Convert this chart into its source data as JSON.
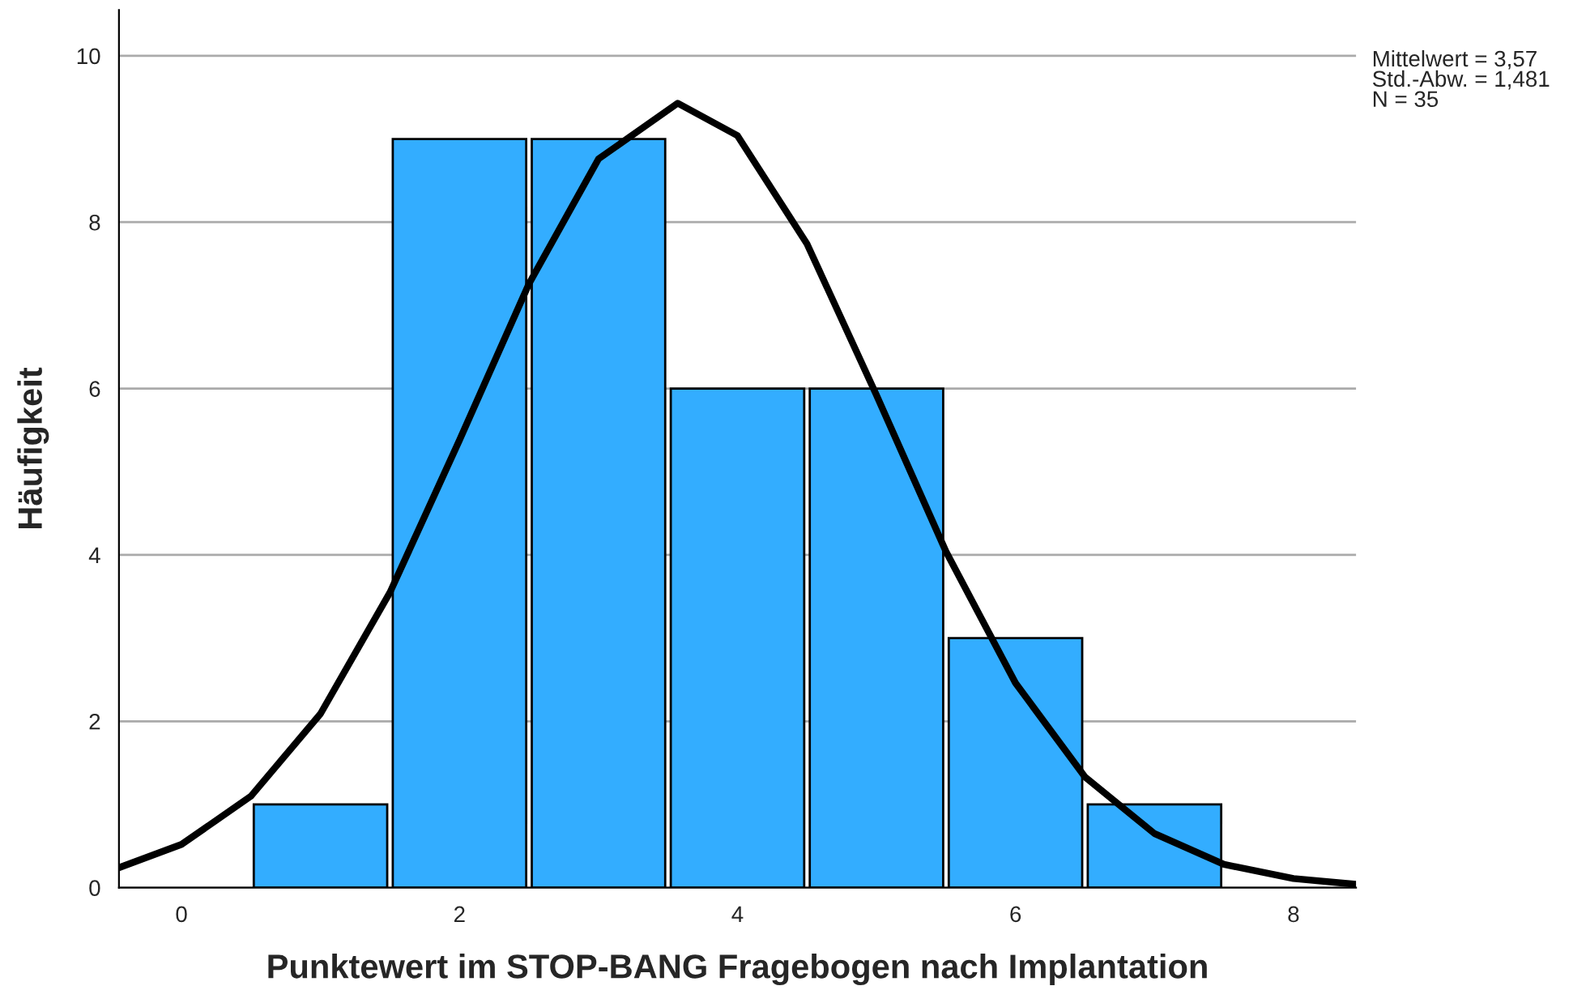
{
  "chart_data": {
    "type": "histogram",
    "xlabel": "Punktewert im STOP-BANG Fragebogen nach Implantation",
    "ylabel": "Häufigkeit",
    "bins": [
      0.5,
      1.5,
      2.5,
      3.5,
      4.5,
      5.5,
      6.5,
      7.5
    ],
    "values": [
      1,
      9,
      9,
      6,
      6,
      3,
      1
    ],
    "color": "#33adff",
    "series": [
      {
        "type": "line",
        "color": "#000000",
        "x": [
          -0.45,
          0,
          0.5,
          1,
          1.5,
          2,
          2.5,
          3,
          3.57,
          4,
          4.5,
          5,
          5.5,
          6,
          6.5,
          7,
          7.5,
          8,
          8.45
        ],
        "values": [
          0.24,
          0.52,
          1.1,
          2.09,
          3.55,
          5.38,
          7.26,
          8.76,
          9.43,
          9.04,
          7.74,
          5.92,
          4.04,
          2.46,
          1.33,
          0.65,
          0.28,
          0.11,
          0.04
        ]
      }
    ],
    "xlim": [
      -0.45,
      8.45
    ],
    "xticks": [
      0,
      2,
      4,
      6,
      8
    ],
    "ylim": [
      0,
      10.55
    ],
    "yticks": [
      0,
      2,
      4,
      6,
      8,
      10
    ],
    "grid": "y",
    "annotations": [
      "Mittelwert = 3,57\nStd.-Abw. = 1,481\nN = 35"
    ]
  }
}
